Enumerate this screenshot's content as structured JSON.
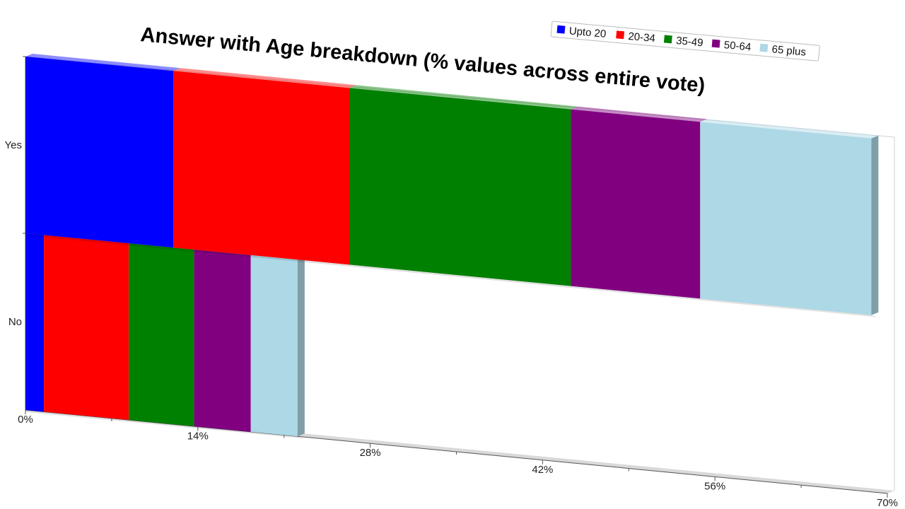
{
  "chart_data": {
    "type": "bar",
    "orientation": "horizontal",
    "stacked": true,
    "style": "3d",
    "title": "Answer with Age breakdown (% values across entire vote)",
    "categories": [
      "Yes",
      "No"
    ],
    "series": [
      {
        "name": "Upto 20",
        "color": "#0000ff",
        "values": [
          12.0,
          1.5
        ]
      },
      {
        "name": "20-34",
        "color": "#ff0000",
        "values": [
          14.3,
          6.9
        ]
      },
      {
        "name": "35-49",
        "color": "#008000",
        "values": [
          18.0,
          5.3
        ]
      },
      {
        "name": "50-64",
        "color": "#800080",
        "values": [
          10.5,
          4.6
        ]
      },
      {
        "name": "65 plus",
        "color": "#add8e6",
        "values": [
          13.9,
          3.8
        ]
      }
    ],
    "xlim": [
      0,
      70
    ],
    "xticks": [
      "0%",
      "14%",
      "28%",
      "42%",
      "56%",
      "70%"
    ],
    "xtick_values": [
      0,
      14,
      28,
      42,
      56,
      70
    ],
    "legend_position": "top-right",
    "grid": false
  }
}
